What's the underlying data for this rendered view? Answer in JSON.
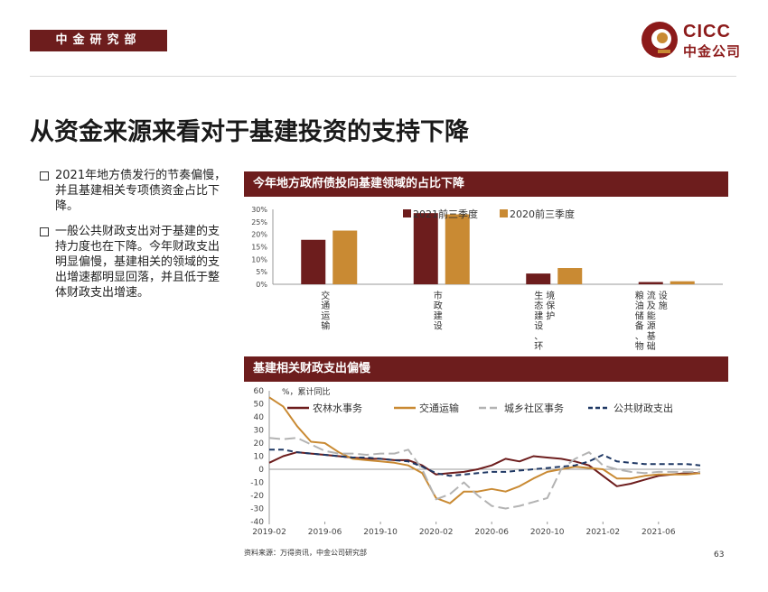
{
  "header": {
    "dept": "中金研究部",
    "logo_en": "CICC",
    "logo_cn": "中金公司"
  },
  "title": "从资金来源来看对于基建投资的支持下降",
  "bullets": [
    "2021年地方债发行的节奏偏慢，并且基建相关专项债资金占比下降。",
    "一般公共财政支出对于基建的支持力度也在下降。今年财政支出明显偏慢，基建相关的领域的支出增速都明显回落，并且低于整体财政支出增速。"
  ],
  "bar_panel_title": "今年地方政府债投向基建领域的占比下降",
  "line_panel_title": "基建相关财政支出偏慢",
  "source": "资料来源：万得资讯，中金公司研究部",
  "page_number": "63",
  "colors": {
    "dark_red": "#6d1d1d",
    "gold": "#c98a33",
    "gray": "#b3b3b3",
    "navy": "#1f3864"
  },
  "chart_data": [
    {
      "type": "bar",
      "ylim": [
        0,
        30
      ],
      "y_ticks": [
        "0%",
        "5%",
        "10%",
        "15%",
        "20%",
        "25%",
        "30%"
      ],
      "categories": [
        "交通运输",
        "市政建设",
        "生态建设、环境保护",
        "粮油储备、物流及能源基础设施"
      ],
      "category_lines": [
        [
          "交通运输"
        ],
        [
          "市政建设"
        ],
        [
          "生态建设、环",
          "境保护"
        ],
        [
          "粮油储备、物",
          "流及能源基础",
          "设施"
        ]
      ],
      "series": [
        {
          "name": "2021前三季度",
          "color": "#6d1d1d",
          "values": [
            17.8,
            28.5,
            4.3,
            0.9
          ]
        },
        {
          "name": "2020前三季度",
          "color": "#c98a33",
          "values": [
            21.5,
            28.0,
            6.5,
            1.2
          ]
        }
      ]
    },
    {
      "type": "line",
      "ylabel": "%，累计同比",
      "ylim": [
        -40,
        60
      ],
      "y_ticks": [
        60,
        50,
        40,
        30,
        20,
        10,
        0,
        -10,
        -20,
        -30,
        -40
      ],
      "x_ticks": [
        "2019-02",
        "2019-06",
        "2019-10",
        "2020-02",
        "2020-06",
        "2020-10",
        "2021-02",
        "2021-06"
      ],
      "x_start": "2019-02",
      "series": [
        {
          "name": "农林水事务",
          "color": "#6d1d1d",
          "dash": "solid",
          "values": [
            5,
            10,
            13,
            12,
            11,
            10,
            9,
            8,
            8,
            7,
            7,
            3,
            -4,
            -3,
            -2,
            0,
            3,
            8,
            6,
            10,
            9,
            8,
            6,
            3,
            -5,
            -13,
            -11,
            -8,
            -5,
            -4,
            -3,
            -3
          ]
        },
        {
          "name": "交通运输",
          "color": "#c98a33",
          "dash": "solid",
          "values": [
            55,
            48,
            33,
            21,
            20,
            13,
            8,
            7,
            6,
            5,
            3,
            -3,
            -22,
            -26,
            -17,
            -17,
            -15,
            -17,
            -13,
            -7,
            -2,
            0,
            2,
            1,
            0,
            -7,
            -7,
            -5,
            -4,
            -4,
            -4,
            -3
          ]
        },
        {
          "name": "城乡社区事务",
          "color": "#b3b3b3",
          "dash": "longdash",
          "values": [
            24,
            23,
            24,
            19,
            14,
            12,
            12,
            11,
            12,
            12,
            15,
            0,
            -23,
            -19,
            -10,
            -20,
            -28,
            -30,
            -28,
            -25,
            -22,
            0,
            8,
            13,
            3,
            0,
            -2,
            -3,
            -2,
            -2,
            -2,
            -2
          ]
        },
        {
          "name": "公共财政支出",
          "color": "#1f3864",
          "dash": "dash",
          "values": [
            15,
            15,
            13,
            12,
            11,
            10,
            9,
            9,
            8,
            7,
            6,
            2,
            -3,
            -5,
            -4,
            -3,
            -2,
            -2,
            -1,
            0,
            1,
            2,
            3,
            6,
            11,
            6,
            5,
            4,
            4,
            4,
            4,
            3
          ]
        }
      ]
    }
  ]
}
